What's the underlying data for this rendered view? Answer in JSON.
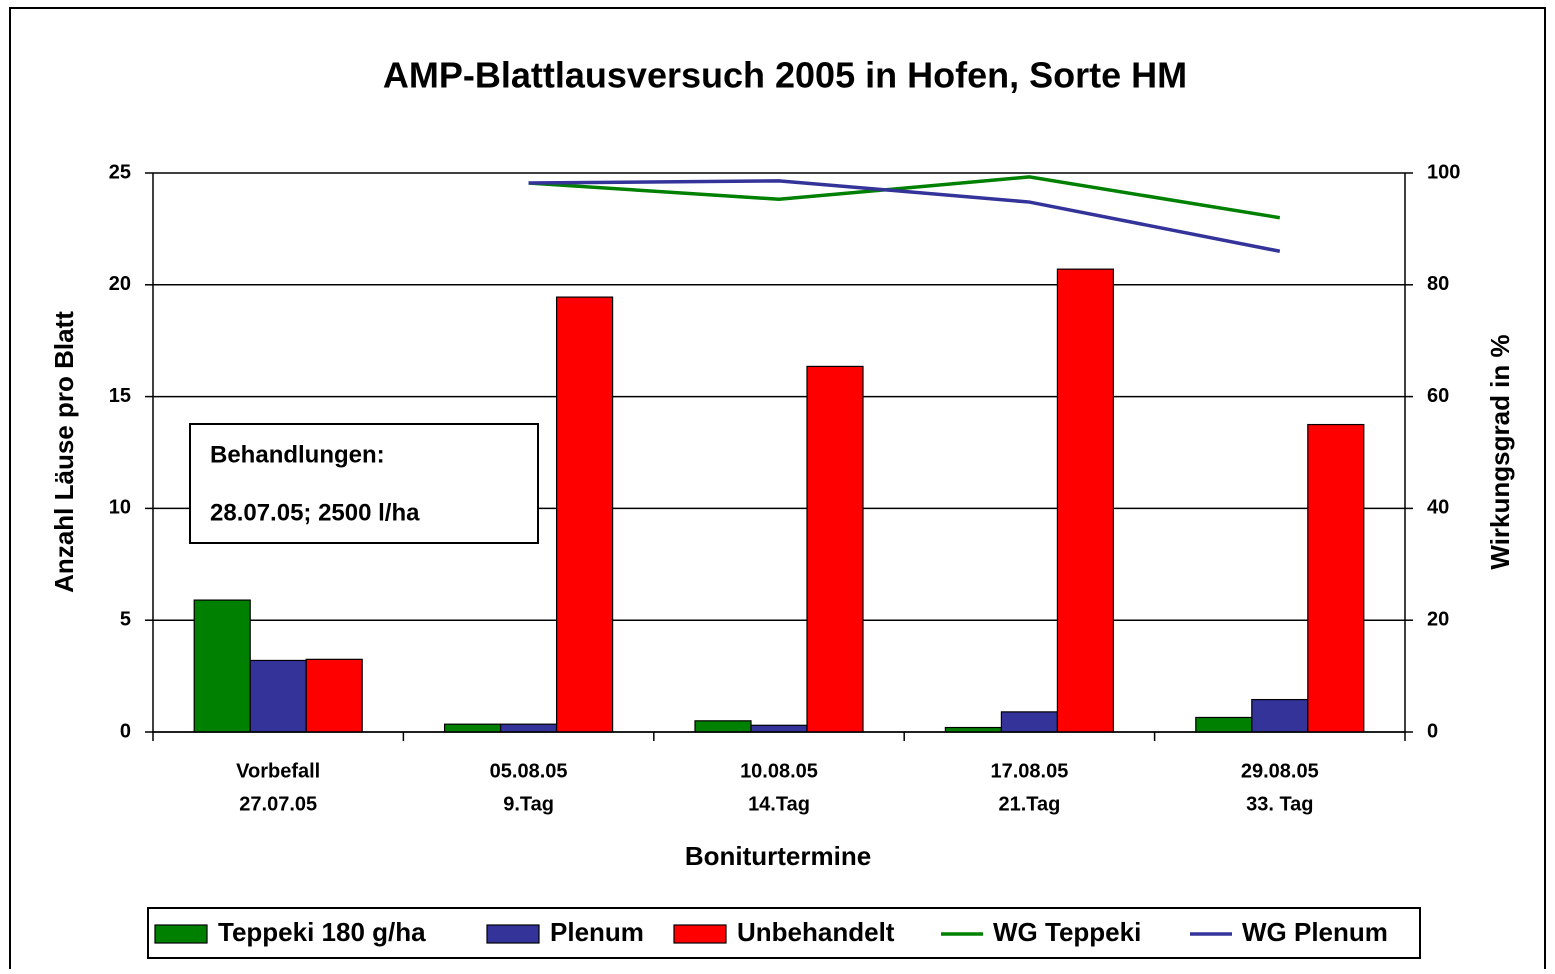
{
  "chart_data": {
    "type": "bar",
    "title": "AMP-Blattlausversuch 2005 in Hofen, Sorte HM",
    "x_label": "Boniturtermine",
    "y_label": "Anzahl Läuse pro Blatt",
    "y2_label": "Wirkungsgrad in %",
    "annotation": [
      "Behandlungen:",
      "28.07.05; 2500 l/ha"
    ],
    "categories": [
      [
        "Vorbefall",
        "27.07.05"
      ],
      [
        "05.08.05",
        "9.Tag"
      ],
      [
        "10.08.05",
        "14.Tag"
      ],
      [
        "17.08.05",
        "21.Tag"
      ],
      [
        "29.08.05",
        "33. Tag"
      ]
    ],
    "series": [
      {
        "name": "Teppeki 180 g/ha",
        "type": "bar",
        "color": "#008000",
        "values": [
          5.9,
          0.35,
          0.5,
          0.2,
          0.65
        ]
      },
      {
        "name": "Plenum",
        "type": "bar",
        "color": "#333399",
        "values": [
          3.2,
          0.35,
          0.3,
          0.9,
          1.45
        ]
      },
      {
        "name": "Unbehandelt",
        "type": "bar",
        "color": "#ff0000",
        "values": [
          3.25,
          19.45,
          16.35,
          20.7,
          13.75
        ]
      },
      {
        "name": "WG Teppeki",
        "type": "line",
        "axis": "y2",
        "color": "#008000",
        "values": [
          null,
          98.2,
          95.3,
          99.3,
          92.0
        ]
      },
      {
        "name": "WG Plenum",
        "type": "line",
        "axis": "y2",
        "color": "#333399",
        "values": [
          null,
          98.2,
          98.6,
          94.8,
          86.0
        ]
      }
    ],
    "ylim": [
      0,
      25
    ],
    "yticks": [
      0,
      5,
      10,
      15,
      20,
      25
    ],
    "y2lim": [
      0,
      100
    ],
    "y2ticks": [
      0,
      20,
      40,
      60,
      80,
      100
    ],
    "grid": true,
    "legend": "bottom"
  }
}
